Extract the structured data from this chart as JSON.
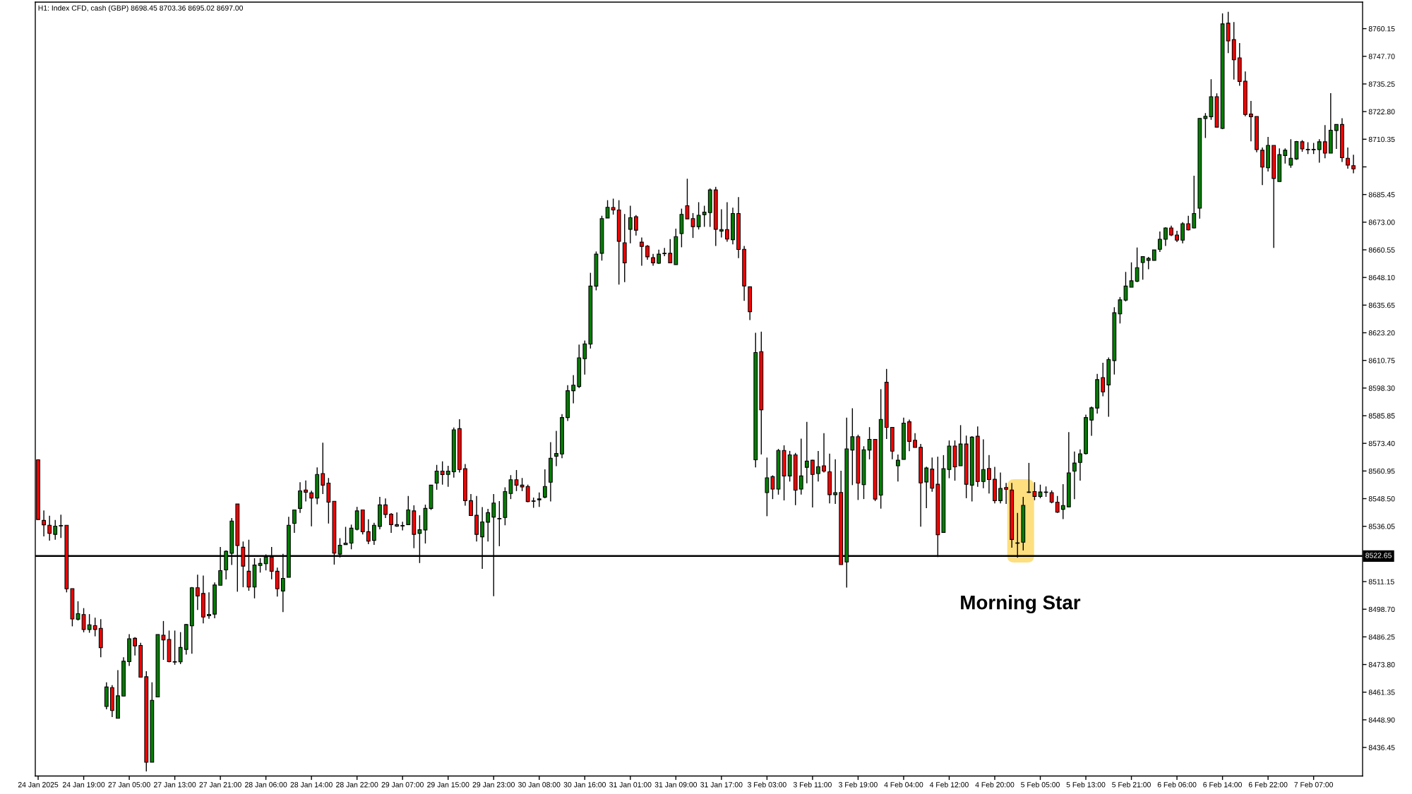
{
  "chart_data": {
    "type": "candlestick",
    "title": "H1: Index CFD, cash (GBP) 8698.45 8703.36 8695.02 8697.00",
    "categories": [
      "24 Jan 2025",
      null,
      null,
      null,
      null,
      null,
      null,
      null,
      "24 Jan 19:00",
      null,
      null,
      null,
      null,
      null,
      null,
      null,
      "27 Jan 05:00",
      null,
      null,
      null,
      null,
      null,
      null,
      null,
      "27 Jan 13:00",
      null,
      null,
      null,
      null,
      null,
      null,
      null,
      "27 Jan 21:00",
      null,
      null,
      null,
      null,
      null,
      null,
      null,
      "28 Jan 06:00",
      null,
      null,
      null,
      null,
      null,
      null,
      null,
      "28 Jan 14:00",
      null,
      null,
      null,
      null,
      null,
      null,
      null,
      "28 Jan 22:00",
      null,
      null,
      null,
      null,
      null,
      null,
      null,
      "29 Jan 07:00",
      null,
      null,
      null,
      null,
      null,
      null,
      null,
      "29 Jan 15:00",
      null,
      null,
      null,
      null,
      null,
      null,
      null,
      "29 Jan 23:00",
      null,
      null,
      null,
      null,
      null,
      null,
      null,
      "30 Jan 08:00",
      null,
      null,
      null,
      null,
      null,
      null,
      null,
      "30 Jan 16:00",
      null,
      null,
      null,
      null,
      null,
      null,
      null,
      "31 Jan 01:00",
      null,
      null,
      null,
      null,
      null,
      null,
      null,
      "31 Jan 09:00",
      null,
      null,
      null,
      null,
      null,
      null,
      null,
      "31 Jan 17:00",
      null,
      null,
      null,
      null,
      null,
      null,
      null,
      "3 Feb 03:00",
      null,
      null,
      null,
      null,
      null,
      null,
      null,
      "3 Feb 11:00",
      null,
      null,
      null,
      null,
      null,
      null,
      null,
      "3 Feb 19:00",
      null,
      null,
      null,
      null,
      null,
      null,
      null,
      "4 Feb 04:00",
      null,
      null,
      null,
      null,
      null,
      null,
      null,
      "4 Feb 12:00",
      null,
      null,
      null,
      null,
      null,
      null,
      null,
      "4 Feb 20:00",
      null,
      null,
      null,
      null,
      null,
      null,
      null,
      "5 Feb 05:00",
      null,
      null,
      null,
      null,
      null,
      null,
      null,
      "5 Feb 13:00",
      null,
      null,
      null,
      null,
      null,
      null,
      null,
      "5 Feb 21:00",
      null,
      null,
      null,
      null,
      null,
      null,
      null,
      "6 Feb 06:00",
      null,
      null,
      null,
      null,
      null,
      null,
      null,
      "6 Feb 14:00",
      null,
      null,
      null,
      null,
      null,
      null,
      null,
      "6 Feb 22:00",
      null,
      null,
      null,
      null,
      null,
      null,
      null,
      "7 Feb 07:00",
      null,
      null,
      null,
      null,
      null,
      null,
      null
    ],
    "ohlc": [
      [
        8566.0,
        8566.2,
        8538.9,
        8539.1
      ],
      [
        8538.7,
        8543.2,
        8531.5,
        8536.7
      ],
      [
        8536.5,
        8540.8,
        8529.6,
        8532.9
      ],
      [
        8532.4,
        8538.9,
        8530.0,
        8536.1
      ],
      [
        8536.4,
        8541.3,
        8530.8,
        8536.2
      ],
      [
        8536.5,
        8536.5,
        8506.3,
        8507.9
      ],
      [
        8508.0,
        8508.0,
        8491.0,
        8494.3
      ],
      [
        8494.2,
        8502.3,
        8493.6,
        8496.7
      ],
      [
        8496.3,
        8499.2,
        8488.3,
        8489.6
      ],
      [
        8489.6,
        8496.5,
        8488.1,
        8491.7
      ],
      [
        8491.3,
        8494.9,
        8486.5,
        8489.6
      ],
      [
        8490.1,
        8494.2,
        8477.1,
        8481.4
      ],
      [
        8454.9,
        8465.8,
        8453.6,
        8463.7
      ],
      [
        8463.4,
        8464.5,
        8450.1,
        8453.1
      ],
      [
        8449.6,
        8471.3,
        8449.6,
        8459.7
      ],
      [
        8459.6,
        8477.1,
        8459.6,
        8475.3
      ],
      [
        8475.1,
        8487.5,
        8473.2,
        8485.4
      ],
      [
        8485.6,
        8486.1,
        8477.9,
        8482.2
      ],
      [
        8482.4,
        8483.6,
        8467.9,
        8468.1
      ],
      [
        8468.3,
        8470.8,
        8425.7,
        8429.8
      ],
      [
        8429.8,
        8465.8,
        8429.8,
        8457.7
      ],
      [
        8459.2,
        8487.3,
        8459.2,
        8487.3
      ],
      [
        8487.0,
        8493.4,
        8475.9,
        8484.9
      ],
      [
        8485.1,
        8489.1,
        8474.8,
        8475.1
      ],
      [
        8475.1,
        8489.1,
        8473.7,
        8474.9
      ],
      [
        8475.0,
        8488.4,
        8474.0,
        8481.5
      ],
      [
        8480.6,
        8492.1,
        8478.3,
        8491.8
      ],
      [
        8491.2,
        8508.7,
        8478.7,
        8508.4
      ],
      [
        8508.4,
        8514.3,
        8498.4,
        8504.7
      ],
      [
        8505.8,
        8513.9,
        8492.3,
        8495.2
      ],
      [
        8495.8,
        8506.3,
        8494.4,
        8496.4
      ],
      [
        8496.5,
        8510.8,
        8494.6,
        8509.6
      ],
      [
        8509.5,
        8526.7,
        8509.5,
        8516.1
      ],
      [
        8516.4,
        8525.2,
        8512.1,
        8524.8
      ],
      [
        8523.9,
        8539.8,
        8518.6,
        8538.4
      ],
      [
        8546.1,
        8546.1,
        8506.6,
        8527.4
      ],
      [
        8526.6,
        8529.2,
        8508.6,
        8518.1
      ],
      [
        8515.8,
        8530.0,
        8507.0,
        8508.7
      ],
      [
        8508.7,
        8521.7,
        8503.6,
        8518.6
      ],
      [
        8518.4,
        8521.7,
        8515.2,
        8519.3
      ],
      [
        8519.2,
        8523.4,
        8516.2,
        8522.2
      ],
      [
        8522.2,
        8526.7,
        8512.2,
        8515.8
      ],
      [
        8515.8,
        8517.4,
        8504.4,
        8507.9
      ],
      [
        8506.9,
        8523.6,
        8497.4,
        8512.6
      ],
      [
        8513.1,
        8540.3,
        8513.1,
        8536.5
      ],
      [
        8537.4,
        8543.4,
        8533.1,
        8543.4
      ],
      [
        8544.1,
        8555.9,
        8542.1,
        8552.0
      ],
      [
        8552.4,
        8556.7,
        8547.2,
        8551.4
      ],
      [
        8551.1,
        8552.1,
        8536.0,
        8548.8
      ],
      [
        8548.8,
        8562.6,
        8546.0,
        8559.4
      ],
      [
        8559.8,
        8573.7,
        8550.6,
        8554.6
      ],
      [
        8555.5,
        8557.8,
        8537.3,
        8546.9
      ],
      [
        8547.3,
        8547.3,
        8518.8,
        8524.0
      ],
      [
        8523.5,
        8530.7,
        8522.0,
        8527.5
      ],
      [
        8527.8,
        8535.8,
        8527.8,
        8528.5
      ],
      [
        8528.5,
        8536.8,
        8525.7,
        8535.2
      ],
      [
        8534.7,
        8544.8,
        8534.2,
        8543.0
      ],
      [
        8543.4,
        8543.4,
        8532.4,
        8533.6
      ],
      [
        8533.6,
        8539.2,
        8528.0,
        8529.4
      ],
      [
        8529.7,
        8537.6,
        8527.7,
        8536.5
      ],
      [
        8536.0,
        8549.3,
        8534.7,
        8545.7
      ],
      [
        8545.7,
        8548.6,
        8539.8,
        8541.4
      ],
      [
        8541.5,
        8542.0,
        8533.1,
        8536.8
      ],
      [
        8536.8,
        8542.3,
        8535.8,
        8536.1
      ],
      [
        8536.4,
        8538.1,
        8534.2,
        8536.2
      ],
      [
        8536.8,
        8549.7,
        8536.8,
        8543.4
      ],
      [
        8543.0,
        8545.5,
        8526.2,
        8532.4
      ],
      [
        8532.9,
        8541.0,
        8519.5,
        8534.5
      ],
      [
        8534.4,
        8545.8,
        8528.3,
        8544.1
      ],
      [
        8544.1,
        8554.6,
        8543.4,
        8554.6
      ],
      [
        8555.5,
        8563.7,
        8552.5,
        8560.9
      ],
      [
        8560.9,
        8565.3,
        8554.8,
        8559.3
      ],
      [
        8559.4,
        8563.3,
        8553.8,
        8560.9
      ],
      [
        8560.6,
        8580.5,
        8558.0,
        8579.5
      ],
      [
        8580.0,
        8584.3,
        8560.3,
        8561.6
      ],
      [
        8562.0,
        8564.1,
        8545.3,
        8547.6
      ],
      [
        8547.6,
        8550.6,
        8540.9,
        8540.9
      ],
      [
        8541.0,
        8549.7,
        8529.2,
        8532.4
      ],
      [
        8531.3,
        8544.7,
        8516.9,
        8538.0
      ],
      [
        8537.9,
        8543.9,
        8529.2,
        8542.2
      ],
      [
        8540.2,
        8550.6,
        8504.6,
        8546.5
      ],
      [
        8539.6,
        8547.4,
        8527.1,
        8539.4
      ],
      [
        8540.0,
        8553.6,
        8536.5,
        8551.7
      ],
      [
        8550.8,
        8559.1,
        8548.3,
        8557.0
      ],
      [
        8557.0,
        8561.4,
        8551.9,
        8554.6
      ],
      [
        8554.6,
        8557.8,
        8551.9,
        8553.8
      ],
      [
        8554.0,
        8554.8,
        8546.9,
        8547.2
      ],
      [
        8547.5,
        8549.0,
        8544.4,
        8547.3
      ],
      [
        8548.0,
        8551.3,
        8544.8,
        8548.4
      ],
      [
        8549.2,
        8561.7,
        8548.7,
        8554.0
      ],
      [
        8555.9,
        8573.9,
        8547.2,
        8566.7
      ],
      [
        8567.6,
        8579.0,
        8563.1,
        8568.8
      ],
      [
        8568.6,
        8586.6,
        8566.7,
        8585.0
      ],
      [
        8585.0,
        8599.6,
        8583.5,
        8597.1
      ],
      [
        8597.1,
        8604.1,
        8591.4,
        8599.6
      ],
      [
        8599.0,
        8617.9,
        8598.3,
        8611.9
      ],
      [
        8611.5,
        8619.7,
        8604.4,
        8618.2
      ],
      [
        8618.1,
        8650.2,
        8616.1,
        8644.2
      ],
      [
        8644.2,
        8659.8,
        8642.3,
        8658.6
      ],
      [
        8659.0,
        8675.9,
        8655.7,
        8674.6
      ],
      [
        8674.9,
        8682.9,
        8674.9,
        8679.7
      ],
      [
        8679.6,
        8683.6,
        8676.4,
        8678.5
      ],
      [
        8678.5,
        8682.9,
        8644.9,
        8664.4
      ],
      [
        8663.7,
        8676.7,
        8646.0,
        8654.7
      ],
      [
        8669.8,
        8680.4,
        8663.5,
        8675.0
      ],
      [
        8675.5,
        8676.2,
        8667.0,
        8669.4
      ],
      [
        8664.0,
        8666.1,
        8653.4,
        8662.1
      ],
      [
        8662.2,
        8662.7,
        8656.1,
        8657.4
      ],
      [
        8657.0,
        8658.7,
        8653.4,
        8654.7
      ],
      [
        8654.5,
        8660.6,
        8654.2,
        8658.6
      ],
      [
        8658.8,
        8661.4,
        8657.7,
        8659.0
      ],
      [
        8659.0,
        8665.4,
        8654.7,
        8654.7
      ],
      [
        8653.9,
        8670.1,
        8653.9,
        8666.5
      ],
      [
        8667.9,
        8679.1,
        8661.7,
        8676.5
      ],
      [
        8680.4,
        8692.6,
        8674.5,
        8674.5
      ],
      [
        8674.6,
        8677.1,
        8665.9,
        8671.0
      ],
      [
        8671.0,
        8682.0,
        8669.7,
        8676.1
      ],
      [
        8676.4,
        8680.4,
        8670.9,
        8677.5
      ],
      [
        8677.3,
        8688.2,
        8670.9,
        8687.5
      ],
      [
        8687.5,
        8688.9,
        8662.3,
        8669.8
      ],
      [
        8669.0,
        8678.8,
        8666.1,
        8669.7
      ],
      [
        8669.7,
        8682.0,
        8664.2,
        8665.4
      ],
      [
        8665.1,
        8679.5,
        8663.0,
        8676.9
      ],
      [
        8676.9,
        8684.3,
        8656.8,
        8660.7
      ],
      [
        8660.8,
        8662.3,
        8637.6,
        8644.3
      ],
      [
        8643.9,
        8643.9,
        8628.9,
        8632.7
      ],
      [
        8566.0,
        8623.2,
        8562.6,
        8614.3
      ],
      [
        8614.7,
        8623.7,
        8568.4,
        8588.5
      ],
      [
        8551.2,
        8567.0,
        8540.6,
        8557.9
      ],
      [
        8558.4,
        8559.0,
        8548.3,
        8552.8
      ],
      [
        8552.8,
        8570.9,
        8550.3,
        8570.2
      ],
      [
        8570.2,
        8572.5,
        8547.7,
        8558.7
      ],
      [
        8558.7,
        8570.0,
        8556.2,
        8568.2
      ],
      [
        8568.2,
        8569.1,
        8545.6,
        8552.3
      ],
      [
        8552.8,
        8575.5,
        8550.3,
        8558.7
      ],
      [
        8562.6,
        8583.1,
        8555.4,
        8565.4
      ],
      [
        8565.8,
        8566.0,
        8544.5,
        8559.4
      ],
      [
        8559.8,
        8570.0,
        8556.2,
        8562.9
      ],
      [
        8563.3,
        8578.0,
        8560.3,
        8560.9
      ],
      [
        8560.6,
        8568.8,
        8546.4,
        8550.3
      ],
      [
        8550.3,
        8566.2,
        8546.1,
        8551.2
      ],
      [
        8551.3,
        8561.1,
        8518.8,
        8518.8
      ],
      [
        8520.0,
        8585.0,
        8508.5,
        8570.9
      ],
      [
        8570.4,
        8589.2,
        8554.6,
        8576.4
      ],
      [
        8576.4,
        8577.3,
        8547.9,
        8555.5
      ],
      [
        8554.8,
        8572.1,
        8548.3,
        8570.5
      ],
      [
        8570.4,
        8580.7,
        8566.2,
        8575.2
      ],
      [
        8575.2,
        8575.2,
        8547.4,
        8548.3
      ],
      [
        8550.1,
        8597.8,
        8544.0,
        8584.2
      ],
      [
        8600.9,
        8606.9,
        8575.4,
        8580.6
      ],
      [
        8580.6,
        8580.6,
        8566.2,
        8569.9
      ],
      [
        8563.3,
        8568.4,
        8556.2,
        8565.8
      ],
      [
        8566.2,
        8585.0,
        8566.2,
        8582.5
      ],
      [
        8583.1,
        8584.1,
        8569.9,
        8574.3
      ],
      [
        8574.8,
        8578.0,
        8571.6,
        8571.6
      ],
      [
        8571.6,
        8573.1,
        8535.9,
        8555.6
      ],
      [
        8556.0,
        8562.9,
        8544.2,
        8562.3
      ],
      [
        8561.8,
        8567.0,
        8551.6,
        8553.2
      ],
      [
        8555.0,
        8567.4,
        8522.2,
        8532.2
      ],
      [
        8533.3,
        8568.1,
        8533.3,
        8562.0
      ],
      [
        8561.6,
        8574.7,
        8557.7,
        8572.2
      ],
      [
        8572.2,
        8574.7,
        8556.6,
        8562.8
      ],
      [
        8563.3,
        8581.6,
        8563.3,
        8573.1
      ],
      [
        8573.1,
        8576.9,
        8548.7,
        8555.0
      ],
      [
        8554.6,
        8576.6,
        8547.2,
        8576.2
      ],
      [
        8576.6,
        8581.0,
        8553.8,
        8556.2
      ],
      [
        8556.2,
        8575.2,
        8553.2,
        8561.6
      ],
      [
        8562.1,
        8568.1,
        8550.8,
        8557.1
      ],
      [
        8557.2,
        8562.8,
        8546.4,
        8547.6
      ],
      [
        8547.6,
        8560.3,
        8546.4,
        8553.1
      ],
      [
        8553.5,
        8555.6,
        8546.1,
        8552.7
      ],
      [
        8552.4,
        8555.6,
        8526.4,
        8530.1
      ],
      [
        8528.6,
        8542.1,
        8522.0,
        8528.4
      ],
      [
        8528.9,
        8549.3,
        8525.2,
        8545.5
      ],
      [
        8551.5,
        8564.6,
        8551.1,
        8551.3
      ],
      [
        8551.7,
        8555.9,
        8547.8,
        8549.5
      ],
      [
        8549.5,
        8554.8,
        8548.7,
        8551.5
      ],
      [
        8551.3,
        8554.0,
        8549.3,
        8551.5
      ],
      [
        8551.2,
        8552.2,
        8546.4,
        8546.9
      ],
      [
        8546.9,
        8549.7,
        8542.1,
        8542.4
      ],
      [
        8543.7,
        8555.0,
        8539.3,
        8545.4
      ],
      [
        8544.8,
        8578.5,
        8544.8,
        8560.1
      ],
      [
        8560.9,
        8569.7,
        8548.3,
        8564.5
      ],
      [
        8564.8,
        8570.7,
        8556.6,
        8568.7
      ],
      [
        8568.8,
        8586.3,
        8568.4,
        8585.0
      ],
      [
        8583.9,
        8590.0,
        8576.8,
        8589.4
      ],
      [
        8589.3,
        8604.7,
        8586.8,
        8602.1
      ],
      [
        8603.0,
        8609.7,
        8594.6,
        8596.6
      ],
      [
        8599.7,
        8612.1,
        8585.4,
        8611.1
      ],
      [
        8610.7,
        8634.7,
        8604.4,
        8632.2
      ],
      [
        8631.7,
        8639.3,
        8627.4,
        8638.0
      ],
      [
        8637.9,
        8650.6,
        8637.3,
        8644.2
      ],
      [
        8643.7,
        8654.9,
        8643.7,
        8646.6
      ],
      [
        8646.4,
        8661.6,
        8646.0,
        8652.5
      ],
      [
        8654.8,
        8657.5,
        8647.1,
        8657.5
      ],
      [
        8655.8,
        8657.4,
        8651.8,
        8656.7
      ],
      [
        8655.8,
        8660.5,
        8655.8,
        8660.5
      ],
      [
        8660.8,
        8668.8,
        8659.6,
        8665.3
      ],
      [
        8665.3,
        8670.7,
        8662.3,
        8670.4
      ],
      [
        8670.4,
        8671.4,
        8666.7,
        8667.2
      ],
      [
        8667.2,
        8669.1,
        8664.0,
        8664.9
      ],
      [
        8664.9,
        8673.0,
        8663.5,
        8672.3
      ],
      [
        8672.3,
        8675.9,
        8669.3,
        8669.5
      ],
      [
        8670.4,
        8693.9,
        8670.2,
        8676.9
      ],
      [
        8679.3,
        8719.7,
        8674.6,
        8719.7
      ],
      [
        8719.7,
        8722.1,
        8710.9,
        8720.7
      ],
      [
        8720.5,
        8737.4,
        8719.1,
        8729.5
      ],
      [
        8729.5,
        8731.0,
        8715.8,
        8715.8
      ],
      [
        8715.2,
        8767.0,
        8714.9,
        8762.3
      ],
      [
        8762.6,
        8767.7,
        8749.1,
        8754.6
      ],
      [
        8755.2,
        8763.1,
        8737.2,
        8746.1
      ],
      [
        8747.0,
        8753.7,
        8734.4,
        8736.4
      ],
      [
        8736.5,
        8740.9,
        8720.7,
        8721.5
      ],
      [
        8721.7,
        8727.6,
        8709.4,
        8720.5
      ],
      [
        8720.6,
        8720.6,
        8704.5,
        8705.7
      ],
      [
        8705.4,
        8706.6,
        8689.7,
        8697.8
      ],
      [
        8697.5,
        8711.4,
        8695.8,
        8707.6
      ],
      [
        8707.6,
        8707.6,
        8661.4,
        8692.7
      ],
      [
        8691.3,
        8706.2,
        8691.3,
        8703.4
      ],
      [
        8703.0,
        8706.2,
        8699.4,
        8705.4
      ],
      [
        8698.7,
        8710.4,
        8697.5,
        8701.8
      ],
      [
        8701.5,
        8709.6,
        8701.1,
        8709.3
      ],
      [
        8709.2,
        8710.0,
        8704.7,
        8706.0
      ],
      [
        8705.8,
        8709.0,
        8703.7,
        8705.6
      ],
      [
        8705.6,
        8708.7,
        8703.7,
        8705.8
      ],
      [
        8705.7,
        8710.4,
        8699.8,
        8709.2
      ],
      [
        8709.2,
        8716.7,
        8701.8,
        8704.1
      ],
      [
        8704.1,
        8731.1,
        8704.1,
        8714.4
      ],
      [
        8714.3,
        8717.0,
        8706.0,
        8717.0
      ],
      [
        8717.0,
        8719.8,
        8700.1,
        8702.0
      ],
      [
        8701.8,
        8706.6,
        8697.1,
        8698.7
      ],
      [
        8698.45,
        8703.36,
        8695.02,
        8697.0
      ]
    ],
    "colors": [
      "#ff0000",
      "#ff0000",
      "#ff0000",
      "#008000",
      "#ff0000",
      "#ff0000",
      "#ff0000",
      "#008000",
      "#ff0000",
      "#008000",
      "#ff0000",
      "#ff0000",
      "#008000",
      "#ff0000",
      "#008000",
      "#008000",
      "#008000",
      "#ff0000",
      "#ff0000",
      "#ff0000",
      "#008000",
      "#008000",
      "#ff0000",
      "#ff0000",
      "#ff0000",
      "#008000",
      "#008000",
      "#008000",
      "#ff0000",
      "#ff0000",
      "#008000",
      "#008000",
      "#008000",
      "#008000",
      "#008000",
      "#ff0000",
      "#ff0000",
      "#ff0000",
      "#008000",
      "#008000",
      "#008000",
      "#ff0000",
      "#ff0000",
      "#008000",
      "#008000",
      "#008000",
      "#008000",
      "#ff0000",
      "#ff0000",
      "#008000",
      "#ff0000",
      "#ff0000",
      "#ff0000",
      "#008000",
      "#008000",
      "#008000",
      "#008000",
      "#ff0000",
      "#ff0000",
      "#008000",
      "#008000",
      "#ff0000",
      "#ff0000",
      "#ff0000",
      "#ff0000",
      "#008000",
      "#ff0000",
      "#008000",
      "#008000",
      "#008000",
      "#008000",
      "#ff0000",
      "#008000",
      "#008000",
      "#ff0000",
      "#ff0000",
      "#ff0000",
      "#ff0000",
      "#008000",
      "#008000",
      "#008000",
      "#ff0000",
      "#008000",
      "#008000",
      "#ff0000",
      "#ff0000",
      "#ff0000",
      "#ff0000",
      "#008000",
      "#008000",
      "#008000",
      "#008000",
      "#008000",
      "#008000",
      "#008000",
      "#008000",
      "#008000",
      "#008000",
      "#008000",
      "#008000",
      "#008000",
      "#ff0000",
      "#ff0000",
      "#ff0000",
      "#008000",
      "#ff0000",
      "#ff0000",
      "#ff0000",
      "#ff0000",
      "#008000",
      "#008000",
      "#ff0000",
      "#008000",
      "#008000",
      "#ff0000",
      "#ff0000",
      "#008000",
      "#008000",
      "#008000",
      "#ff0000",
      "#008000",
      "#ff0000",
      "#008000",
      "#ff0000",
      "#ff0000",
      "#ff0000",
      "#008000",
      "#ff0000",
      "#008000",
      "#ff0000",
      "#008000",
      "#ff0000",
      "#008000",
      "#ff0000",
      "#008000",
      "#008000",
      "#ff0000",
      "#008000",
      "#ff0000",
      "#ff0000",
      "#008000",
      "#ff0000",
      "#008000",
      "#008000",
      "#ff0000",
      "#008000",
      "#008000",
      "#ff0000",
      "#008000",
      "#ff0000",
      "#ff0000",
      "#008000",
      "#008000",
      "#ff0000",
      "#ff0000",
      "#ff0000",
      "#008000",
      "#ff0000",
      "#ff0000",
      "#008000",
      "#008000",
      "#ff0000",
      "#008000",
      "#ff0000",
      "#008000",
      "#ff0000",
      "#008000",
      "#ff0000",
      "#ff0000",
      "#008000",
      "#ff0000",
      "#ff0000",
      "#ff0000",
      "#008000",
      "#ff0000",
      "#ff0000",
      "#008000",
      "#008000",
      "#ff0000",
      "#ff0000",
      "#008000",
      "#008000",
      "#008000",
      "#008000",
      "#008000",
      "#008000",
      "#008000",
      "#ff0000",
      "#008000",
      "#008000",
      "#008000",
      "#008000",
      "#008000",
      "#008000",
      "#008000",
      "#008000",
      "#008000",
      "#008000",
      "#008000",
      "#ff0000",
      "#ff0000",
      "#008000",
      "#ff0000",
      "#008000",
      "#008000",
      "#008000",
      "#008000",
      "#ff0000",
      "#008000",
      "#ff0000",
      "#ff0000",
      "#ff0000",
      "#ff0000",
      "#ff0000",
      "#ff0000",
      "#ff0000",
      "#008000",
      "#ff0000",
      "#008000",
      "#008000",
      "#008000",
      "#008000",
      "#ff0000",
      "#ff0000",
      "#008000",
      "#008000",
      "#ff0000",
      "#008000",
      "#008000",
      "#ff0000",
      "#ff0000",
      "#ff0000"
    ],
    "ylim": [
      8423.6,
      8772.1
    ],
    "yticks": [
      8436.45,
      {
        "value": 8448.9,
        "label": "8448.90"
      },
      8461.35,
      {
        "value": 8473.8,
        "label": "8473.80"
      },
      8486.25,
      {
        "value": 8498.7,
        "label": "8498.70"
      },
      8511.15,
      8536.05,
      {
        "value": 8548.5,
        "label": "8548.50"
      },
      8560.95,
      {
        "value": 8573.4,
        "label": "8573.40"
      },
      8585.85,
      {
        "value": 8598.3,
        "label": "8598.30"
      },
      8610.75,
      {
        "value": 8623.2,
        "label": "8623.20"
      },
      8635.65,
      {
        "value": 8648.1,
        "label": "8648.10"
      },
      8660.55,
      {
        "value": 8673,
        "label": "8673.00"
      },
      8685.45,
      {
        "value": 8697.9,
        "label": null
      },
      8710.35,
      {
        "value": 8722.8,
        "label": "8722.80"
      },
      8735.25,
      {
        "value": 8747.7,
        "label": "8747.70"
      },
      8760.15
    ],
    "ref_lines": [
      {
        "axis": "y",
        "value": 8522.65,
        "label": "8522.65",
        "color": "#000000"
      }
    ],
    "annotations": [
      "Morning Star"
    ]
  }
}
